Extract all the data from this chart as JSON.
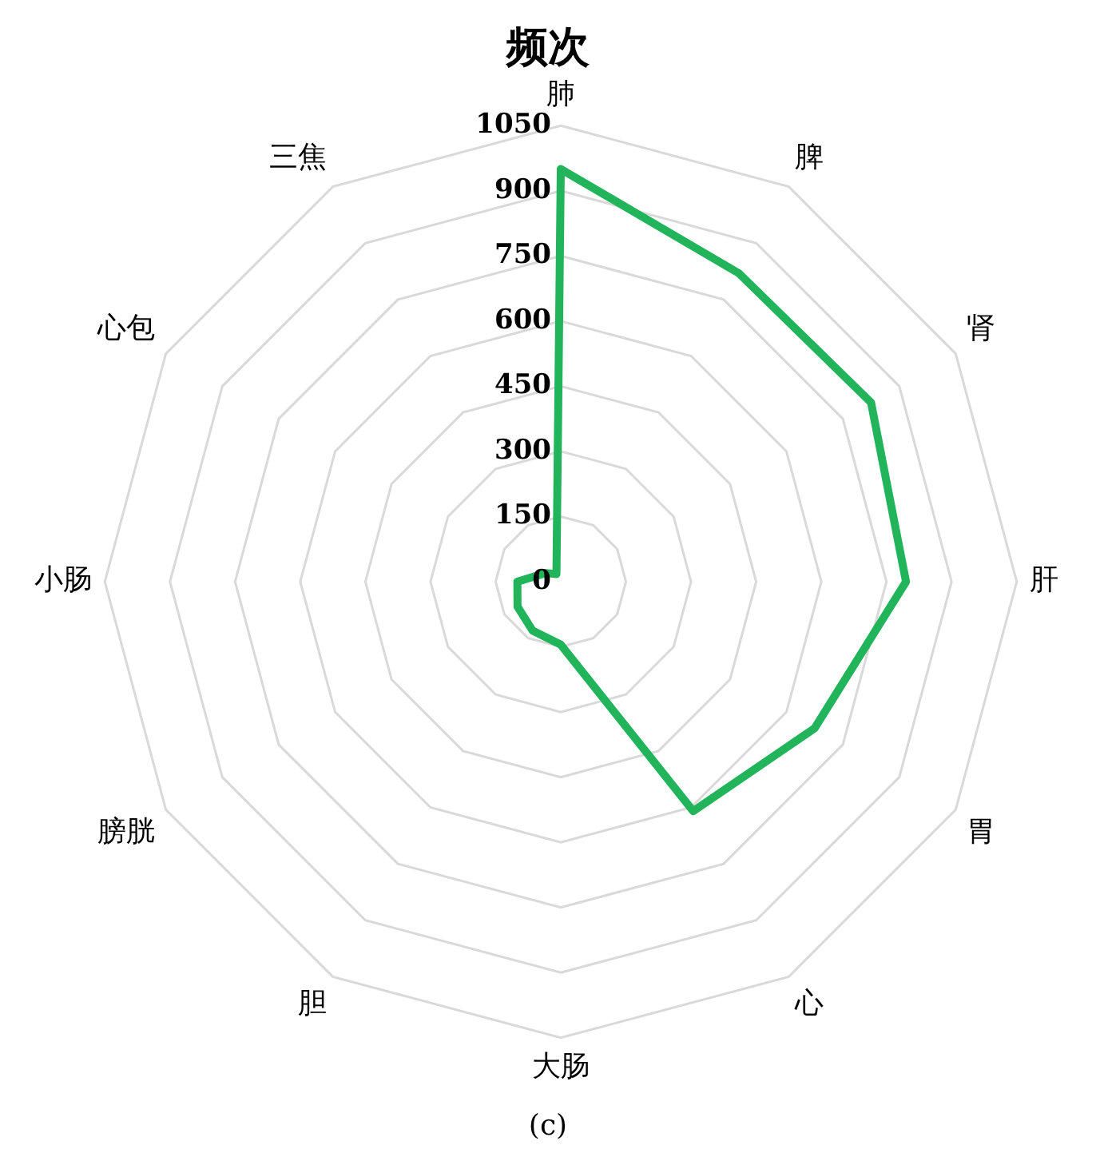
{
  "chart_data": {
    "type": "radar",
    "title": "频次",
    "categories": [
      "肺",
      "脾",
      "肾",
      "肝",
      "胃",
      "心",
      "大肠",
      "胆",
      "膀胱",
      "小肠",
      "心包",
      "三焦"
    ],
    "series": [
      {
        "color": "#22b45a",
        "values": [
          950,
          820,
          825,
          795,
          675,
          610,
          145,
          130,
          115,
          100,
          40,
          20
        ]
      }
    ],
    "ylim": [
      0,
      1050
    ],
    "yticks": [
      0,
      150,
      300,
      450,
      600,
      750,
      900,
      1050
    ],
    "grid": true,
    "legend": false,
    "marker": "none",
    "line_style": "solid",
    "annotations": [
      "(c)"
    ]
  }
}
